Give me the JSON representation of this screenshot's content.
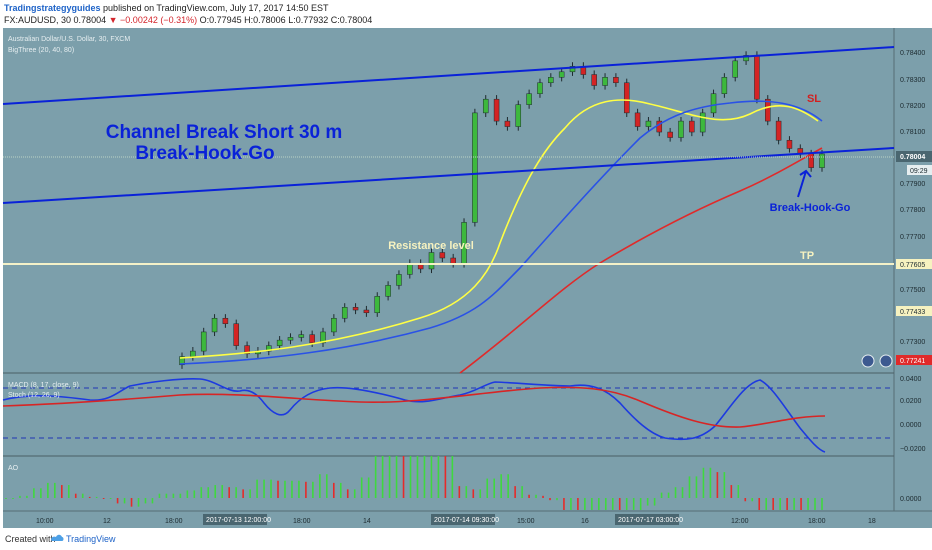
{
  "header": {
    "publisher": "Tradingstrategyguides",
    "published_text": "published on TradingView.com, July 17, 2017 14:50 EST",
    "symbol": "FX:AUDUSD, 30",
    "last": "0.78004",
    "change_arrow": "▼",
    "change": "−0.00242 (−0.31%)",
    "ohlc": "O:0.77945 H:0.78006 L:0.77932 C:0.78004"
  },
  "legend": {
    "main_title": "Australian Dollar/U.S. Dollar, 30, FXCM",
    "indicator": "BigThree (20, 40, 80)",
    "macd_label": "MACD (8, 17, close, 9)",
    "stoch_label": "Stoch (12, 26, 9)",
    "ao_label": "AO"
  },
  "annotations": {
    "title_line1": "Channel Break Short 30 m",
    "title_line2": "Break-Hook-Go",
    "resistance": "Resistance level",
    "sl": "SL",
    "tp": "TP",
    "bhg": "Break-Hook-Go"
  },
  "footer": {
    "created": "Created with",
    "brand": "TradingView"
  },
  "colors": {
    "background": "#7c9fab",
    "channel": "#0a22d8",
    "ma_fast": "#ffff44",
    "ma_mid": "#2a52e6",
    "ma_slow": "#e02a2a",
    "up_candle": "#3db83d",
    "down_candle": "#d42424",
    "price_badge": "#4a6670",
    "sl_text": "#d21f1f"
  },
  "chart_data": [
    {
      "type": "candlestick",
      "title": "Australian Dollar/U.S. Dollar, 30, FXCM",
      "ylim": [
        0.772,
        0.7846
      ],
      "yticks": [
        "0.78400",
        "0.78300",
        "0.78200",
        "0.78100",
        "0.78004",
        "0.77900",
        "0.77800",
        "0.77700",
        "0.77605",
        "0.77500",
        "0.77433",
        "0.77300",
        "0.77241"
      ],
      "highlighted_prices": {
        "last": "0.78004",
        "last_time": "09:29",
        "resistance": "0.77605",
        "level_2": "0.77433",
        "level_3": "0.77241"
      },
      "xticks": [
        "10:00",
        "12",
        "18:00",
        "2017-07-13 12:00:00",
        "18:00",
        "14",
        "2017-07-14 09:30:00",
        "15:00",
        "16",
        "2017-07-17 03:00:00",
        "12:00",
        "18:00",
        "18"
      ],
      "ohlc_close_approx": [
        0.7726,
        0.7728,
        0.7735,
        0.774,
        0.7738,
        0.773,
        0.7727,
        0.7728,
        0.773,
        0.7732,
        0.7733,
        0.7734,
        0.7731,
        0.7735,
        0.774,
        0.7744,
        0.7743,
        0.7742,
        0.7748,
        0.7752,
        0.7756,
        0.776,
        0.7758,
        0.7764,
        0.7762,
        0.776,
        0.7775,
        0.7815,
        0.782,
        0.7812,
        0.781,
        0.7818,
        0.7822,
        0.7826,
        0.7828,
        0.783,
        0.7832,
        0.7829,
        0.7825,
        0.7828,
        0.7826,
        0.7815,
        0.781,
        0.7812,
        0.7808,
        0.7806,
        0.7812,
        0.7808,
        0.7815,
        0.7822,
        0.7828,
        0.7834,
        0.7836,
        0.782,
        0.7812,
        0.7805,
        0.7802,
        0.78,
        0.7795,
        0.78
      ],
      "series": [
        {
          "name": "BigThree 20",
          "color": "#ffff44"
        },
        {
          "name": "BigThree 40",
          "color": "#2a52e6"
        },
        {
          "name": "BigThree 80",
          "color": "#e02a2a"
        }
      ],
      "annotations": [
        "Channel Break Short 30 m",
        "Break-Hook-Go",
        "Resistance level",
        "SL",
        "TP",
        "Break-Hook-Go"
      ]
    },
    {
      "type": "line",
      "title": "MACD (8, 17, close, 9) / Stoch (12, 26, 9)",
      "ylim": [
        -0.03,
        0.05
      ],
      "yticks": [
        "0.0400",
        "0.0200",
        "0.0000",
        "−0.0200"
      ]
    },
    {
      "type": "bar",
      "title": "AO",
      "yticks": [
        "0.0000"
      ]
    }
  ]
}
